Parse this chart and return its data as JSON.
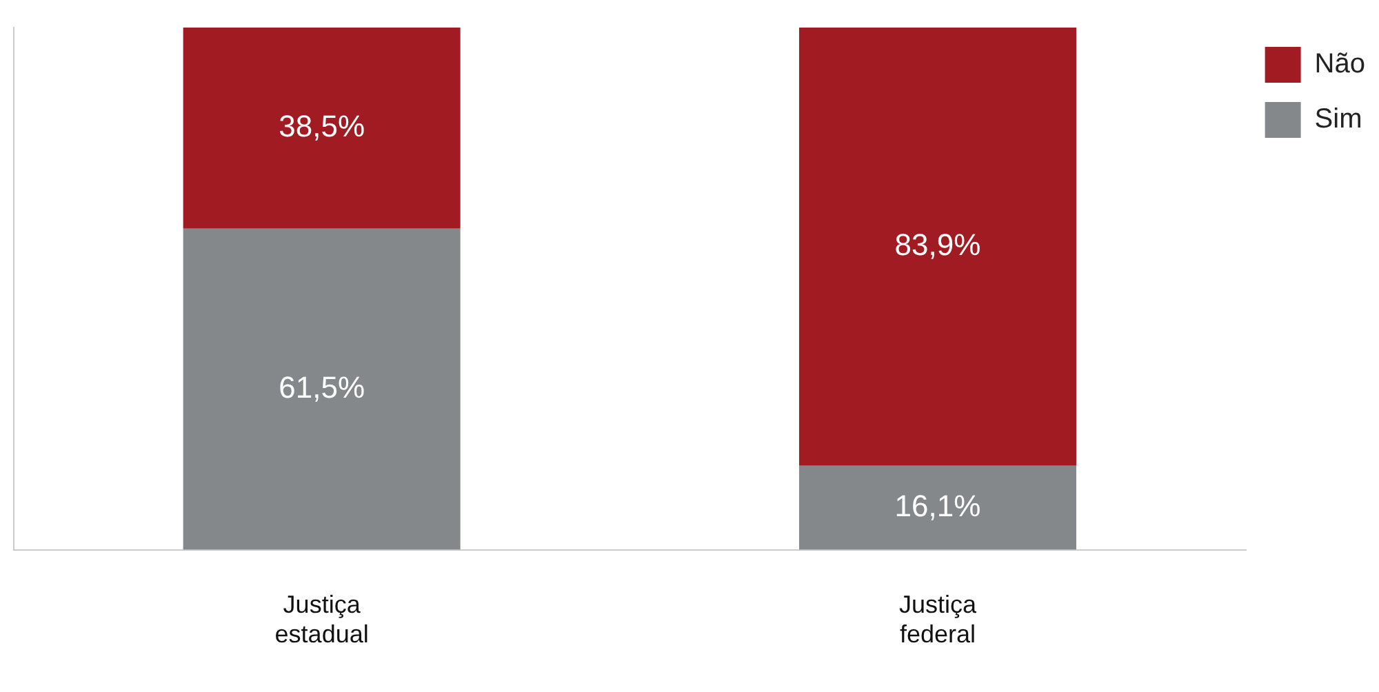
{
  "chart_data": {
    "type": "bar",
    "stacked": true,
    "categories": [
      "Justiça estadual",
      "Justiça federal"
    ],
    "series": [
      {
        "name": "Sim",
        "color": "#85888b",
        "values": [
          61.5,
          16.1
        ],
        "value_labels": [
          "61,5%",
          "16,1%"
        ]
      },
      {
        "name": "Não",
        "color": "#a01c22",
        "values": [
          38.5,
          83.9
        ],
        "value_labels": [
          "38,5%",
          "83,9%"
        ]
      }
    ],
    "legend": "top right",
    "grid": false
  }
}
